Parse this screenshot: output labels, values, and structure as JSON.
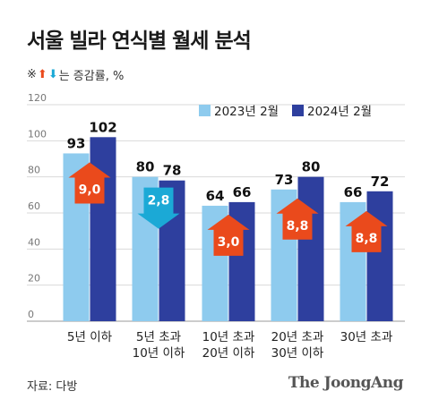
{
  "title": "서울 빌라 연식별 월세 분석",
  "note": {
    "prefix": "※",
    "up_icon": "arrow-up-icon",
    "down_icon": "arrow-down-icon",
    "text": "는 증감률, %"
  },
  "source": "자료: 다방",
  "brand": "The JoongAng",
  "colors": {
    "series_2023": "#8ecbee",
    "series_2024": "#2e3f9e",
    "increase": "#ea4a1c",
    "decrease": "#1ba9d6",
    "grid": "#d9d9d9"
  },
  "chart_data": {
    "type": "bar",
    "title": "서울 빌라 연식별 월세 분석",
    "categories": [
      [
        "5년 이하"
      ],
      [
        "5년 초과",
        "10년 이하"
      ],
      [
        "10년 초과",
        "20년 이하"
      ],
      [
        "20년 초과",
        "30년 이하"
      ],
      [
        "30년 초과"
      ]
    ],
    "series": [
      {
        "name": "2023년 2월",
        "values": [
          93,
          80,
          64,
          73,
          66
        ]
      },
      {
        "name": "2024년 2월",
        "values": [
          102,
          78,
          66,
          80,
          72
        ]
      }
    ],
    "change_rate": [
      {
        "label": "9,0",
        "direction": "up"
      },
      {
        "label": "2,8",
        "direction": "down"
      },
      {
        "label": "3,0",
        "direction": "up"
      },
      {
        "label": "8,8",
        "direction": "up"
      },
      {
        "label": "8,8",
        "direction": "up"
      }
    ],
    "yticks": [
      "0",
      "20",
      "40",
      "60",
      "80",
      "100",
      "120"
    ],
    "ylim": [
      0,
      120
    ],
    "grid": true,
    "legend": "top-right"
  }
}
